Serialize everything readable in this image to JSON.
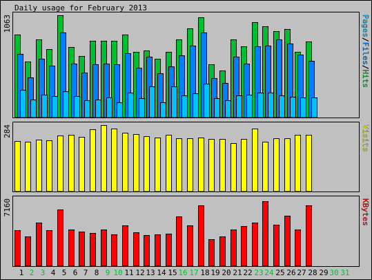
{
  "chart_data": {
    "type": "bar",
    "title": "Daily usage for February 2013",
    "categories": [
      "1",
      "2",
      "3",
      "4",
      "5",
      "6",
      "7",
      "8",
      "9",
      "10",
      "11",
      "12",
      "13",
      "14",
      "15",
      "16",
      "17",
      "18",
      "19",
      "20",
      "21",
      "22",
      "23",
      "24",
      "25",
      "26",
      "27",
      "28",
      "29",
      "30",
      "31"
    ],
    "weekend_days": [
      "2",
      "3",
      "9",
      "10",
      "16",
      "17",
      "23",
      "24",
      "30",
      "31"
    ],
    "colors": {
      "background": "#c0c0c0",
      "plot": "#c0c0c0",
      "hits": "#00c030",
      "files": "#0080ff",
      "pages": "#00c0ff",
      "visits": "#ffff00",
      "kbytes": "#ff0000",
      "weekday_label": "#000000",
      "weekend_label": "#00c030"
    },
    "panels": [
      {
        "id": "pages-files-hits",
        "ymax_label": "1063",
        "ylim": [
          0,
          1063
        ],
        "right_label_parts": [
          {
            "text": "Pages",
            "color": "#00c0ff"
          },
          {
            "text": "/",
            "color": "#000000"
          },
          {
            "text": "Files",
            "color": "#0080ff"
          },
          {
            "text": "/",
            "color": "#000000"
          },
          {
            "text": "Hits",
            "color": "#00c030"
          }
        ],
        "series": [
          {
            "name": "Hits",
            "color": "#00c030",
            "values": [
              860,
              585,
              810,
              710,
              1063,
              730,
              640,
              800,
              800,
              800,
              860,
              680,
              700,
              610,
              680,
              810,
              930,
              1040,
              550,
              490,
              810,
              740,
              990,
              950,
              900,
              920,
              680,
              790,
              0,
              0,
              0
            ]
          },
          {
            "name": "Files",
            "color": "#0080ff",
            "values": [
              660,
              420,
              610,
              540,
              880,
              560,
              465,
              550,
              560,
              550,
              665,
              515,
              630,
              460,
              535,
              650,
              745,
              880,
              410,
              360,
              630,
              560,
              740,
              750,
              810,
              765,
              655,
              590,
              0,
              0,
              0
            ]
          },
          {
            "name": "Pages",
            "color": "#00c0ff",
            "values": [
              290,
              190,
              240,
              220,
              270,
              220,
              180,
              190,
              210,
              160,
              260,
              200,
              320,
              160,
              320,
              230,
              250,
              350,
              200,
              180,
              230,
              240,
              260,
              260,
              230,
              215,
              210,
              210,
              0,
              0,
              0
            ]
          }
        ]
      },
      {
        "id": "visits",
        "ymax_label": "284",
        "ylim": [
          0,
          284
        ],
        "right_label_parts": [
          {
            "text": "Visits",
            "color": "#ffff00"
          }
        ],
        "series": [
          {
            "name": "Visits",
            "color": "#ffff00",
            "values": [
              216,
              212,
              222,
              220,
              240,
              242,
              234,
              265,
              284,
              270,
              250,
              246,
              238,
              232,
              244,
              228,
              228,
              232,
              224,
              226,
              206,
              226,
              268,
              214,
              229,
              228,
              242,
              242,
              0,
              0,
              0
            ]
          }
        ]
      },
      {
        "id": "kbytes",
        "ymax_label": "7160",
        "ylim": [
          0,
          7160
        ],
        "right_label_parts": [
          {
            "text": "KBytes",
            "color": "#ff0000"
          }
        ],
        "series": [
          {
            "name": "KBytes",
            "color": "#ff0000",
            "values": [
              3840,
              3200,
              4640,
              3840,
              6080,
              3910,
              3710,
              3520,
              3910,
              3400,
              4370,
              3590,
              3330,
              3400,
              3460,
              5310,
              4370,
              6460,
              2880,
              3200,
              3910,
              4300,
              4630,
              6910,
              4440,
              5390,
              3910,
              6460,
              0,
              0,
              0
            ]
          }
        ]
      }
    ]
  }
}
